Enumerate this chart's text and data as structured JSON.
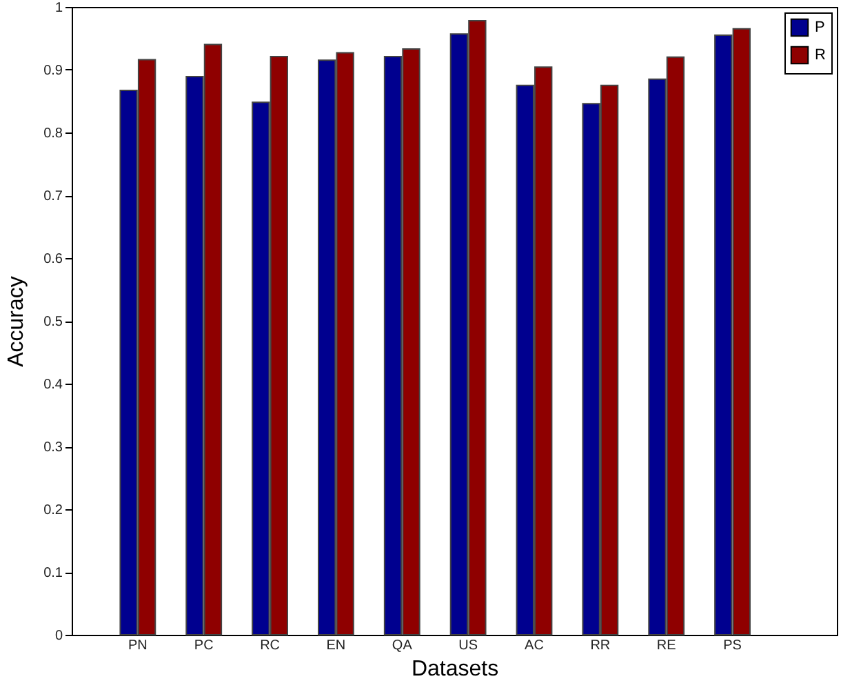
{
  "chart_data": {
    "type": "bar",
    "xlabel": "Datasets",
    "ylabel": "Accuracy",
    "categories": [
      "PN",
      "PC",
      "RC",
      "EN",
      "QA",
      "US",
      "AC",
      "RR",
      "RE",
      "PS"
    ],
    "series": [
      {
        "name": "P",
        "color": "#00008f",
        "values": [
          0.867,
          0.889,
          0.848,
          0.915,
          0.921,
          0.957,
          0.875,
          0.846,
          0.885,
          0.955
        ]
      },
      {
        "name": "R",
        "color": "#8f0000",
        "values": [
          0.916,
          0.94,
          0.921,
          0.927,
          0.933,
          0.978,
          0.904,
          0.875,
          0.92,
          0.965
        ]
      }
    ],
    "ylim": [
      0,
      1
    ],
    "yticks": [
      0,
      0.1,
      0.2,
      0.3,
      0.4,
      0.5,
      0.6,
      0.7,
      0.8,
      0.9,
      1
    ],
    "grid": false,
    "legend": "top right"
  }
}
